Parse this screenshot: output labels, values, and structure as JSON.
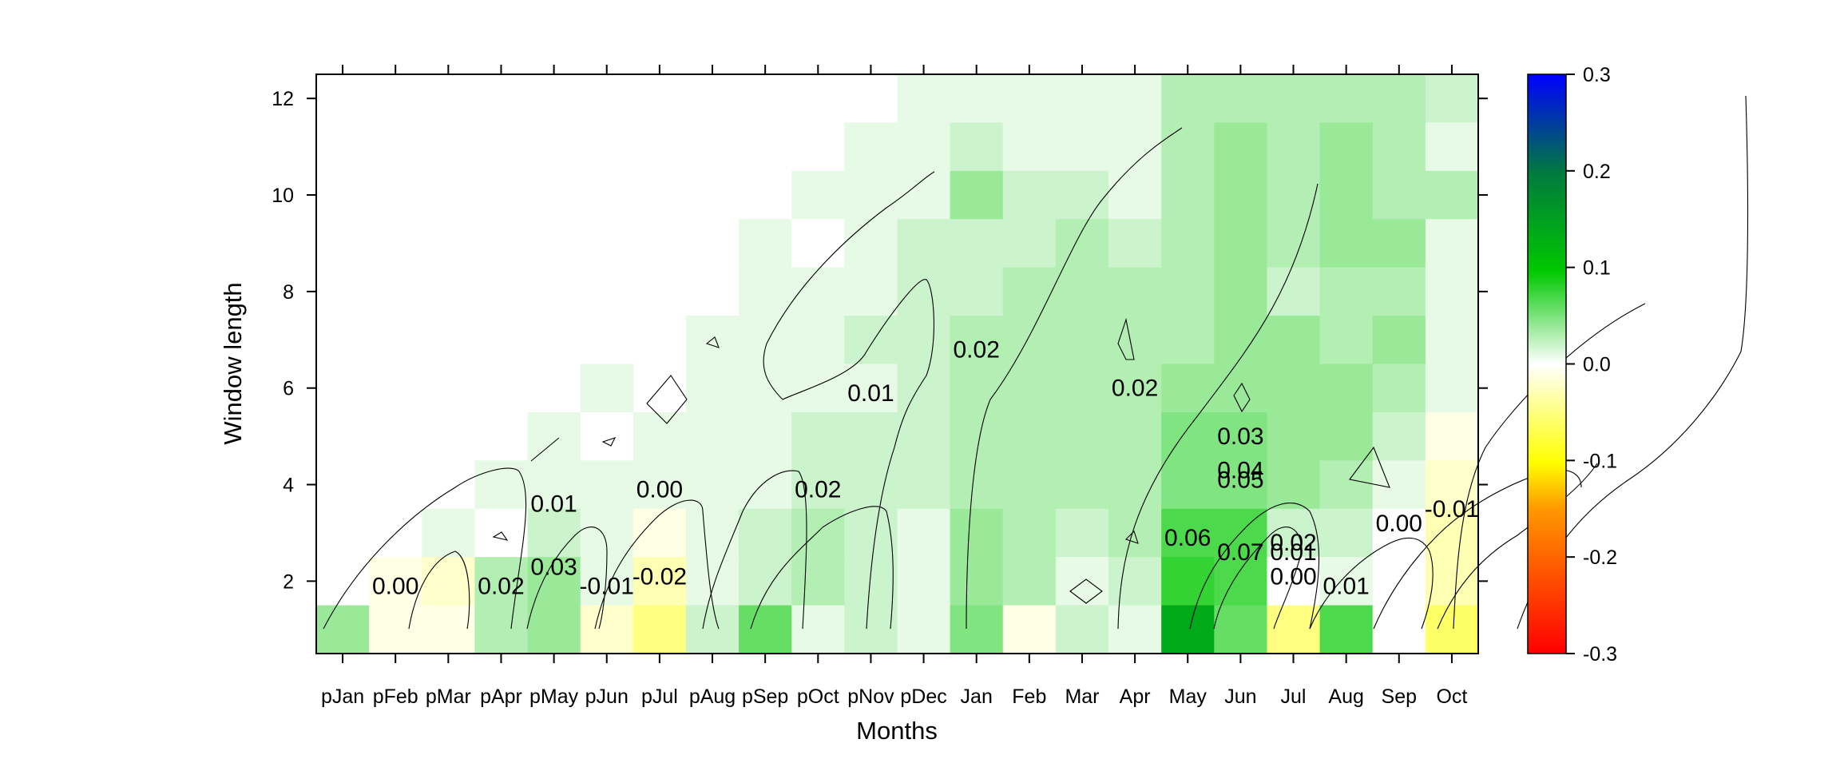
{
  "chart_data": {
    "type": "heatmap",
    "title": "",
    "xlabel": "Months",
    "ylabel": "Window length",
    "categories": [
      "pJan",
      "pFeb",
      "pMar",
      "pApr",
      "pMay",
      "pJun",
      "pJul",
      "pAug",
      "pSep",
      "pOct",
      "pNov",
      "pDec",
      "Jan",
      "Feb",
      "Mar",
      "Apr",
      "May",
      "Jun",
      "Jul",
      "Aug",
      "Sep",
      "Oct"
    ],
    "yticks": [
      "2",
      "4",
      "6",
      "8",
      "10",
      "12"
    ],
    "ytick_values": [
      2,
      4,
      6,
      8,
      10,
      12
    ],
    "ylim": [
      0.5,
      12.5
    ],
    "colorbar": {
      "ticks": [
        "0.3",
        "0.2",
        "0.1",
        "0.0",
        "-0.1",
        "-0.2",
        "-0.3"
      ],
      "tick_values": [
        0.3,
        0.2,
        0.1,
        0.0,
        -0.1,
        -0.2,
        -0.3
      ],
      "range": [
        -0.3,
        0.3
      ],
      "colors": [
        "#ff0000",
        "#ff8800",
        "#ffff00",
        "#ffffff",
        "#00cc00",
        "#0000ff"
      ]
    },
    "cells": [
      {
        "window": 12,
        "values": [
          null,
          null,
          null,
          null,
          null,
          null,
          null,
          null,
          null,
          null,
          null,
          0.01,
          0.01,
          0.01,
          0.01,
          0.01,
          0.03,
          0.03,
          0.03,
          0.03,
          0.03,
          0.02
        ]
      },
      {
        "window": 11,
        "values": [
          null,
          null,
          null,
          null,
          null,
          null,
          null,
          null,
          null,
          null,
          0.01,
          0.01,
          0.02,
          0.01,
          0.01,
          0.01,
          0.03,
          0.04,
          0.03,
          0.04,
          0.03,
          0.01
        ]
      },
      {
        "window": 10,
        "values": [
          null,
          null,
          null,
          null,
          null,
          null,
          null,
          null,
          null,
          0.01,
          0.01,
          0.01,
          0.04,
          0.02,
          0.02,
          0.01,
          0.03,
          0.04,
          0.03,
          0.04,
          0.03,
          0.03
        ]
      },
      {
        "window": 9,
        "values": [
          null,
          null,
          null,
          null,
          null,
          null,
          null,
          null,
          0.01,
          0.0,
          0.01,
          0.02,
          0.02,
          0.02,
          0.03,
          0.02,
          0.03,
          0.04,
          0.03,
          0.04,
          0.04,
          0.01
        ]
      },
      {
        "window": 8,
        "values": [
          null,
          null,
          null,
          null,
          null,
          null,
          null,
          null,
          0.01,
          0.01,
          0.01,
          0.02,
          0.02,
          0.03,
          0.03,
          0.03,
          0.03,
          0.04,
          0.02,
          0.03,
          0.03,
          0.01
        ]
      },
      {
        "window": 7,
        "values": [
          null,
          null,
          null,
          null,
          null,
          null,
          null,
          0.01,
          0.01,
          0.01,
          0.02,
          0.02,
          0.03,
          0.03,
          0.03,
          0.03,
          0.03,
          0.04,
          0.04,
          0.03,
          0.04,
          0.01
        ]
      },
      {
        "window": 6,
        "values": [
          null,
          null,
          null,
          null,
          null,
          0.01,
          null,
          0.01,
          0.01,
          0.01,
          0.01,
          0.02,
          0.03,
          0.03,
          0.03,
          0.03,
          0.04,
          0.04,
          0.04,
          0.04,
          0.03,
          0.01
        ]
      },
      {
        "window": 5,
        "values": [
          null,
          null,
          null,
          null,
          0.01,
          0.0,
          0.01,
          0.01,
          0.01,
          0.02,
          0.02,
          0.02,
          0.03,
          0.03,
          0.03,
          0.03,
          0.05,
          0.05,
          0.04,
          0.04,
          0.02,
          -0.01
        ]
      },
      {
        "window": 4,
        "values": [
          null,
          null,
          null,
          0.01,
          0.01,
          0.01,
          0.01,
          0.01,
          0.01,
          0.02,
          0.02,
          0.02,
          0.03,
          0.03,
          0.03,
          0.03,
          0.05,
          0.05,
          0.04,
          0.03,
          0.01,
          -0.02
        ]
      },
      {
        "window": 3,
        "values": [
          null,
          null,
          0.01,
          0.0,
          0.02,
          0.01,
          -0.01,
          0.01,
          0.02,
          0.03,
          0.02,
          0.01,
          0.04,
          0.03,
          0.02,
          0.03,
          0.07,
          0.07,
          0.02,
          0.02,
          0.0,
          -0.03
        ]
      },
      {
        "window": 2,
        "values": [
          null,
          -0.01,
          -0.02,
          0.03,
          0.04,
          0.01,
          -0.03,
          0.01,
          0.02,
          0.03,
          0.02,
          0.01,
          0.04,
          0.03,
          0.01,
          0.02,
          0.08,
          0.07,
          0.0,
          0.01,
          0.0,
          -0.03
        ]
      },
      {
        "window": 1,
        "values": [
          0.04,
          -0.01,
          -0.01,
          0.03,
          0.04,
          -0.02,
          -0.05,
          0.02,
          0.06,
          0.01,
          0.02,
          0.01,
          0.05,
          -0.01,
          0.02,
          0.01,
          0.14,
          0.06,
          -0.05,
          0.07,
          0.0,
          -0.06
        ]
      }
    ],
    "contour_labels": [
      {
        "text": "0.00",
        "month": "pFeb",
        "window": 1.9
      },
      {
        "text": "0.02",
        "month": "pApr",
        "window": 1.9
      },
      {
        "text": "0.03",
        "month": "pMay",
        "window": 2.3
      },
      {
        "text": "-0.01",
        "month": "pJun",
        "window": 1.9
      },
      {
        "text": "-0.02",
        "month": "pJul",
        "window": 2.1
      },
      {
        "text": "0.01",
        "month": "pMay",
        "window": 3.6
      },
      {
        "text": "0.00",
        "month": "pJul",
        "window": 3.9
      },
      {
        "text": "0.02",
        "month": "pOct",
        "window": 3.9
      },
      {
        "text": "0.01",
        "month": "pNov",
        "window": 5.9
      },
      {
        "text": "0.02",
        "month": "Jan",
        "window": 6.8
      },
      {
        "text": "0.02",
        "month": "Apr",
        "window": 6.0
      },
      {
        "text": "0.03",
        "month": "Jun",
        "window": 5.0
      },
      {
        "text": "0.04",
        "month": "Jun",
        "window": 4.3
      },
      {
        "text": "0.05",
        "month": "Jun",
        "window": 4.1
      },
      {
        "text": "0.06",
        "month": "May",
        "window": 2.9
      },
      {
        "text": "0.07",
        "month": "Jun",
        "window": 2.6
      },
      {
        "text": "0.02",
        "month": "Jul",
        "window": 2.8
      },
      {
        "text": "0.01",
        "month": "Jul",
        "window": 2.6
      },
      {
        "text": "0.00",
        "month": "Jul",
        "window": 2.1
      },
      {
        "text": "0.01",
        "month": "Aug",
        "window": 1.9
      },
      {
        "text": "0.00",
        "month": "Sep",
        "window": 3.2
      },
      {
        "text": "-0.01",
        "month": "Oct",
        "window": 3.5
      }
    ]
  }
}
